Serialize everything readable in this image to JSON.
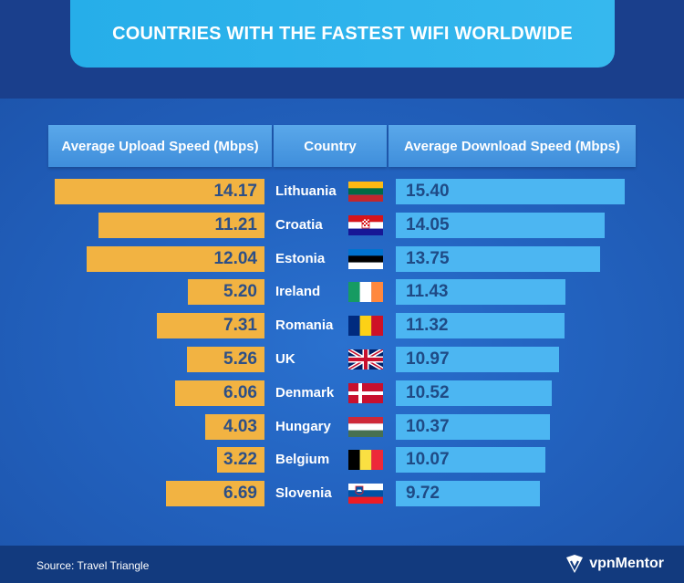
{
  "title": "COUNTRIES WITH THE FASTEST WIFI WORLDWIDE",
  "headers": {
    "upload": "Average Upload Speed (Mbps)",
    "country": "Country",
    "download": "Average Download Speed (Mbps)"
  },
  "chart_data": {
    "type": "bar",
    "categories": [
      "Lithuania",
      "Croatia",
      "Estonia",
      "Ireland",
      "Romania",
      "UK",
      "Denmark",
      "Hungary",
      "Belgium",
      "Slovenia"
    ],
    "series": [
      {
        "name": "Average Upload Speed (Mbps)",
        "values": [
          "14.17",
          "11.21",
          "12.04",
          "5.20",
          "7.31",
          "5.26",
          "6.06",
          "4.03",
          "3.22",
          "6.69"
        ]
      },
      {
        "name": "Average Download Speed (Mbps)",
        "values": [
          "15.40",
          "14.05",
          "13.75",
          "11.43",
          "11.32",
          "10.97",
          "10.52",
          "10.37",
          "10.07",
          "9.72"
        ]
      }
    ],
    "colors": {
      "upload": "#f2b342",
      "download": "#4cb6f2"
    }
  },
  "flags": [
    "lithuania-flag",
    "croatia-flag",
    "estonia-flag",
    "ireland-flag",
    "romania-flag",
    "uk-flag",
    "denmark-flag",
    "hungary-flag",
    "belgium-flag",
    "slovenia-flag"
  ],
  "footer": {
    "source": "Source: Travel Triangle",
    "brand": "vpnMentor"
  }
}
